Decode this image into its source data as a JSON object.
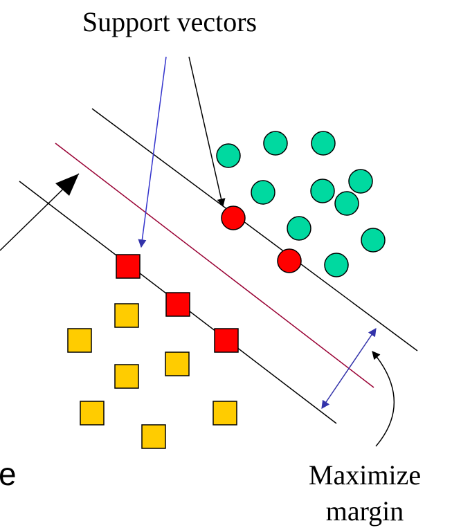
{
  "labels": {
    "support_vectors": "Support vectors",
    "maximize": "Maximize",
    "margin": "margin",
    "clipped_letter": "e"
  },
  "colors": {
    "circle_fill": "#00d9a0",
    "support_vector_fill": "#ff0000",
    "square_fill": "#ffcc00",
    "hyperplane": "#990033",
    "margin_lines": "#000000",
    "support_arrow_blue": "#3333cc",
    "margin_arrow": "#3333aa",
    "outline": "#000000"
  }
}
